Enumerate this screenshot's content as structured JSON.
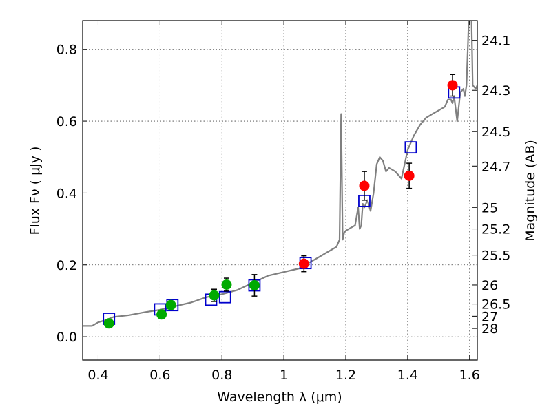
{
  "chart_data": {
    "type": "scatter",
    "xlabel": "Wavelength  λ (μm)",
    "ylabel": "Flux  Fν  ( μJy )",
    "ylabel_right": "Magnitude (AB)",
    "xlim": [
      0.35,
      1.625
    ],
    "ylim": [
      -0.065,
      0.88
    ],
    "grid": true,
    "x_ticks": [
      0.4,
      0.6,
      0.8,
      1.0,
      1.2,
      1.4,
      1.6
    ],
    "x_tick_labels": [
      "0.4",
      "0.6",
      "0.8",
      "1",
      "1.2",
      "1.4",
      "1.6"
    ],
    "y_ticks": [
      0.0,
      0.2,
      0.4,
      0.6,
      0.8
    ],
    "y_tick_labels": [
      "0.0",
      "0.2",
      "0.4",
      "0.6",
      "0.8"
    ],
    "right_ticks": [
      {
        "label": "24.1",
        "flux": 0.825
      },
      {
        "label": "24.3",
        "flux": 0.686
      },
      {
        "label": "24.5",
        "flux": 0.571
      },
      {
        "label": "24.7",
        "flux": 0.475
      },
      {
        "label": "25",
        "flux": 0.36
      },
      {
        "label": "25.2",
        "flux": 0.3
      },
      {
        "label": "25.5",
        "flux": 0.227
      },
      {
        "label": "26",
        "flux": 0.144
      },
      {
        "label": "26.5",
        "flux": 0.091
      },
      {
        "label": "27",
        "flux": 0.057
      },
      {
        "label": "28",
        "flux": 0.023
      }
    ],
    "series": [
      {
        "kind": "line",
        "color": "#808080",
        "x": [
          0.35,
          0.38,
          0.4,
          0.42,
          0.45,
          0.5,
          0.55,
          0.6,
          0.65,
          0.7,
          0.75,
          0.8,
          0.85,
          0.9,
          0.95,
          1.0,
          1.05,
          1.08,
          1.1,
          1.14,
          1.17,
          1.18,
          1.185,
          1.19,
          1.195,
          1.2,
          1.23,
          1.24,
          1.245,
          1.25,
          1.255,
          1.26,
          1.27,
          1.28,
          1.29,
          1.3,
          1.31,
          1.32,
          1.33,
          1.34,
          1.36,
          1.38,
          1.39,
          1.4,
          1.42,
          1.44,
          1.46,
          1.48,
          1.5,
          1.52,
          1.53,
          1.54,
          1.545,
          1.55,
          1.56,
          1.57,
          1.58,
          1.585,
          1.59,
          1.595,
          1.6,
          1.605,
          1.61,
          1.62,
          1.625
        ],
        "y": [
          0.03,
          0.03,
          0.04,
          0.045,
          0.055,
          0.06,
          0.068,
          0.075,
          0.085,
          0.095,
          0.11,
          0.118,
          0.13,
          0.15,
          0.17,
          0.18,
          0.19,
          0.205,
          0.215,
          0.235,
          0.25,
          0.27,
          0.62,
          0.27,
          0.29,
          0.295,
          0.31,
          0.36,
          0.3,
          0.31,
          0.37,
          0.36,
          0.38,
          0.35,
          0.4,
          0.48,
          0.5,
          0.49,
          0.46,
          0.47,
          0.46,
          0.44,
          0.48,
          0.52,
          0.56,
          0.59,
          0.61,
          0.62,
          0.63,
          0.64,
          0.66,
          0.66,
          0.65,
          0.67,
          0.6,
          0.68,
          0.69,
          0.67,
          0.7,
          0.82,
          0.95,
          0.95,
          0.7,
          0.69,
          0.7
        ]
      },
      {
        "kind": "squares",
        "color": "#0000cc",
        "x": [
          0.435,
          0.6,
          0.64,
          0.765,
          0.81,
          0.905,
          1.07,
          1.26,
          1.41,
          1.55
        ],
        "y": [
          0.05,
          0.076,
          0.088,
          0.103,
          0.11,
          0.143,
          0.205,
          0.378,
          0.527,
          0.68
        ]
      },
      {
        "kind": "points",
        "color": "#00aa00",
        "x": [
          0.435,
          0.605,
          0.635,
          0.775,
          0.815,
          0.905
        ],
        "y": [
          0.037,
          0.062,
          0.088,
          0.115,
          0.145,
          0.143
        ],
        "err": [
          0.01,
          0.008,
          0.01,
          0.017,
          0.018,
          0.03
        ]
      },
      {
        "kind": "points",
        "color": "#ff0000",
        "x": [
          1.065,
          1.26,
          1.405,
          1.545
        ],
        "y": [
          0.203,
          0.42,
          0.448,
          0.7
        ],
        "err": [
          0.022,
          0.04,
          0.035,
          0.03
        ]
      }
    ]
  }
}
